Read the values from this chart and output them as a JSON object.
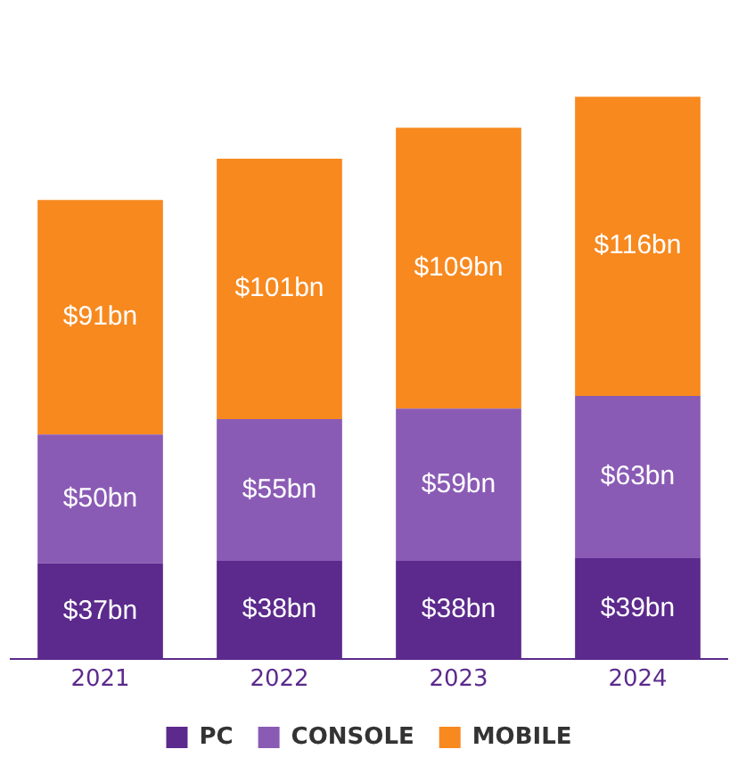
{
  "chart_data": {
    "type": "bar",
    "stacked": true,
    "categories": [
      "2021",
      "2022",
      "2023",
      "2024"
    ],
    "series": [
      {
        "name": "PC",
        "color": "#5b2a8c",
        "values": [
          37,
          38,
          38,
          39
        ],
        "value_labels": [
          "$37bn",
          "$38bn",
          "$38bn",
          "$39bn"
        ]
      },
      {
        "name": "CONSOLE",
        "color": "#8a5bb5",
        "values": [
          50,
          55,
          59,
          63
        ],
        "value_labels": [
          "$50bn",
          "$55bn",
          "$59bn",
          "$63bn"
        ]
      },
      {
        "name": "MOBILE",
        "color": "#f7891f",
        "values": [
          91,
          101,
          109,
          116
        ],
        "value_labels": [
          "$91bn",
          "$101bn",
          "$109bn",
          "$116bn"
        ]
      }
    ],
    "grid": false,
    "legend": "bottom"
  }
}
